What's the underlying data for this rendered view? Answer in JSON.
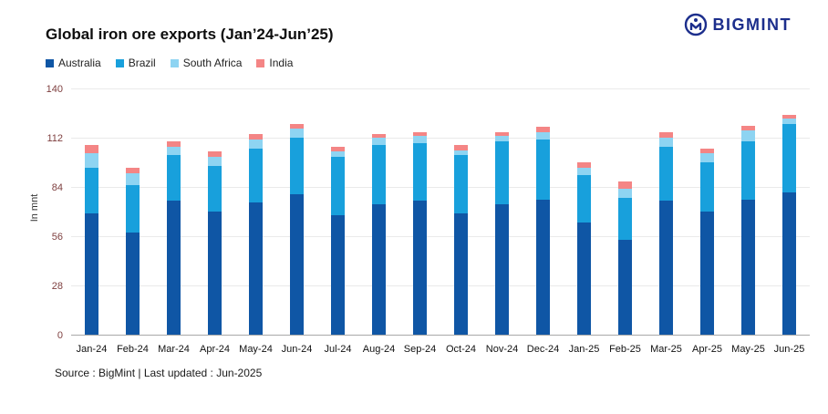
{
  "header": {
    "title": "Global iron ore exports (Jan’24-Jun’25)",
    "brand": "BIGMINT"
  },
  "footer": {
    "source": "Source : BigMint | Last updated : Jun-2025"
  },
  "icons": {
    "logo_mark": "bigmint-circle-m-icon"
  },
  "chart_data": {
    "type": "bar",
    "stacked": true,
    "title": "Global iron ore exports (Jan’24-Jun’25)",
    "xlabel": "",
    "ylabel": "In mnt",
    "ylim": [
      0,
      140
    ],
    "yticks": [
      0,
      28,
      56,
      84,
      112,
      140
    ],
    "grid": true,
    "legend_position": "top-left",
    "categories": [
      "Jan-24",
      "Feb-24",
      "Mar-24",
      "Apr-24",
      "May-24",
      "Jun-24",
      "Jul-24",
      "Aug-24",
      "Sep-24",
      "Oct-24",
      "Nov-24",
      "Dec-24",
      "Jan-25",
      "Feb-25",
      "Mar-25",
      "Apr-25",
      "May-25",
      "Jun-25"
    ],
    "series": [
      {
        "name": "Australia",
        "color": "#0f56a5",
        "values": [
          69,
          58,
          76,
          70,
          75,
          80,
          68,
          74,
          76,
          69,
          74,
          77,
          64,
          54,
          76,
          70,
          77,
          81
        ]
      },
      {
        "name": "Brazil",
        "color": "#18a0dc",
        "values": [
          26,
          27,
          26,
          26,
          31,
          32,
          33,
          34,
          33,
          33,
          36,
          34,
          27,
          24,
          31,
          28,
          33,
          39
        ]
      },
      {
        "name": "South Africa",
        "color": "#8ed4f2",
        "values": [
          8,
          7,
          5,
          5,
          5,
          5,
          3,
          4,
          4,
          3,
          3,
          4,
          4,
          5,
          5,
          5,
          6,
          3
        ]
      },
      {
        "name": "India",
        "color": "#f48585",
        "values": [
          5,
          3,
          3,
          3,
          3,
          3,
          3,
          2,
          2,
          3,
          2,
          3,
          3,
          4,
          3,
          3,
          3,
          2
        ]
      }
    ],
    "totals": [
      108,
      95,
      110,
      104,
      114,
      120,
      107,
      114,
      115,
      108,
      115,
      118,
      98,
      87,
      115,
      106,
      119,
      125
    ]
  }
}
